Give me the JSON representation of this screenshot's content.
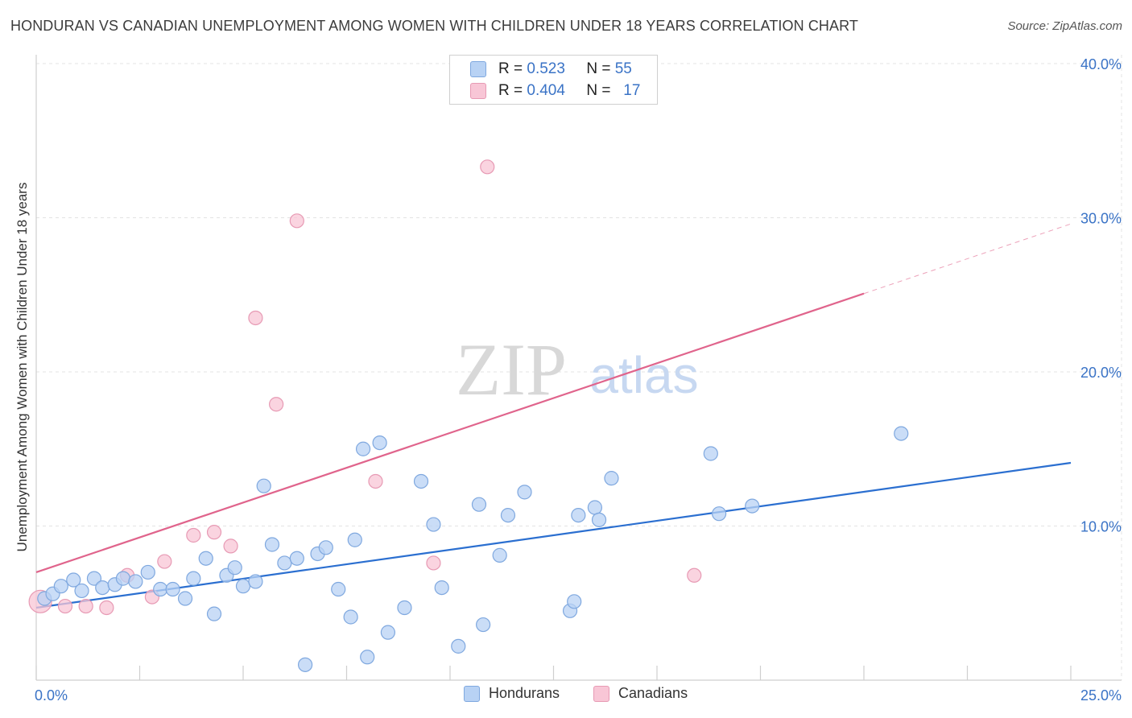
{
  "title": "HONDURAN VS CANADIAN UNEMPLOYMENT AMONG WOMEN WITH CHILDREN UNDER 18 YEARS CORRELATION CHART",
  "source": "Source: ZipAtlas.com",
  "watermark": {
    "zip": "ZIP",
    "atlas": "atlas"
  },
  "legend_top": [
    {
      "r_label": "R =",
      "r_value": "0.523",
      "n_label": "N =",
      "n_value": "55"
    },
    {
      "r_label": "R =",
      "r_value": "0.404",
      "n_label": "N =",
      "n_value": "17"
    }
  ],
  "legend_bottom": [
    "Hondurans",
    "Canadians"
  ],
  "colors": {
    "hondurans_fill": "#b8d2f4",
    "hondurans_stroke": "#7fa8df",
    "hondurans_line": "#2b6fd0",
    "canadians_fill": "#f8c6d6",
    "canadians_stroke": "#e79ab4",
    "canadians_line": "#e0648c",
    "axis_value": "#3a73c6"
  },
  "chart_data": {
    "type": "scatter",
    "title": "HONDURAN VS CANADIAN UNEMPLOYMENT AMONG WOMEN WITH CHILDREN UNDER 18 YEARS CORRELATION CHART",
    "xlabel": "",
    "ylabel": "Unemployment Among Women with Children Under 18 years",
    "xlim": [
      0,
      25
    ],
    "ylim": [
      0,
      40
    ],
    "x_tick_labels": [
      "0.0%",
      "25.0%"
    ],
    "y_ticks": [
      10,
      20,
      30,
      40
    ],
    "y_tick_labels": [
      "10.0%",
      "20.0%",
      "30.0%",
      "40.0%"
    ],
    "grid": true,
    "series": [
      {
        "name": "Hondurans",
        "r": 0.523,
        "n": 55,
        "trend": {
          "x0": 0,
          "y0": 4.7,
          "x1": 25,
          "y1": 14.1,
          "solid_until": 25
        },
        "points": [
          [
            0.2,
            5.3
          ],
          [
            0.4,
            5.6
          ],
          [
            0.6,
            6.1
          ],
          [
            0.9,
            6.5
          ],
          [
            1.1,
            5.8
          ],
          [
            1.4,
            6.6
          ],
          [
            1.6,
            6.0
          ],
          [
            1.9,
            6.2
          ],
          [
            2.1,
            6.6
          ],
          [
            2.4,
            6.4
          ],
          [
            2.7,
            7.0
          ],
          [
            3.0,
            5.9
          ],
          [
            3.3,
            5.9
          ],
          [
            3.6,
            5.3
          ],
          [
            3.8,
            6.6
          ],
          [
            4.1,
            7.9
          ],
          [
            4.3,
            4.3
          ],
          [
            4.6,
            6.8
          ],
          [
            4.8,
            7.3
          ],
          [
            5.0,
            6.1
          ],
          [
            5.3,
            6.4
          ],
          [
            5.5,
            12.6
          ],
          [
            5.7,
            8.8
          ],
          [
            6.0,
            7.6
          ],
          [
            6.3,
            7.9
          ],
          [
            6.5,
            1.0
          ],
          [
            6.8,
            8.2
          ],
          [
            7.0,
            8.6
          ],
          [
            7.3,
            5.9
          ],
          [
            7.6,
            4.1
          ],
          [
            7.7,
            9.1
          ],
          [
            7.9,
            15.0
          ],
          [
            8.0,
            1.5
          ],
          [
            8.3,
            15.4
          ],
          [
            8.5,
            3.1
          ],
          [
            8.9,
            4.7
          ],
          [
            9.3,
            12.9
          ],
          [
            9.6,
            10.1
          ],
          [
            9.8,
            6.0
          ],
          [
            10.2,
            2.2
          ],
          [
            10.7,
            11.4
          ],
          [
            10.8,
            3.6
          ],
          [
            11.4,
            10.7
          ],
          [
            11.2,
            8.1
          ],
          [
            11.8,
            12.2
          ],
          [
            12.9,
            4.5
          ],
          [
            13.0,
            5.1
          ],
          [
            13.1,
            10.7
          ],
          [
            13.5,
            11.2
          ],
          [
            13.6,
            10.4
          ],
          [
            13.9,
            13.1
          ],
          [
            16.3,
            14.7
          ],
          [
            16.5,
            10.8
          ],
          [
            17.3,
            11.3
          ],
          [
            20.9,
            16.0
          ]
        ]
      },
      {
        "name": "Canadians",
        "r": 0.404,
        "n": 17,
        "trend": {
          "x0": 0,
          "y0": 7.0,
          "x1": 25,
          "y1": 29.6,
          "solid_until": 20.0
        },
        "points": [
          [
            0.1,
            5.1
          ],
          [
            0.7,
            4.8
          ],
          [
            1.2,
            4.8
          ],
          [
            1.7,
            4.7
          ],
          [
            2.2,
            6.8
          ],
          [
            2.8,
            5.4
          ],
          [
            3.1,
            7.7
          ],
          [
            3.8,
            9.4
          ],
          [
            4.3,
            9.6
          ],
          [
            4.7,
            8.7
          ],
          [
            5.3,
            23.5
          ],
          [
            5.8,
            17.9
          ],
          [
            6.3,
            29.8
          ],
          [
            8.2,
            12.9
          ],
          [
            9.6,
            7.6
          ],
          [
            10.9,
            33.3
          ],
          [
            15.9,
            6.8
          ]
        ]
      }
    ]
  }
}
